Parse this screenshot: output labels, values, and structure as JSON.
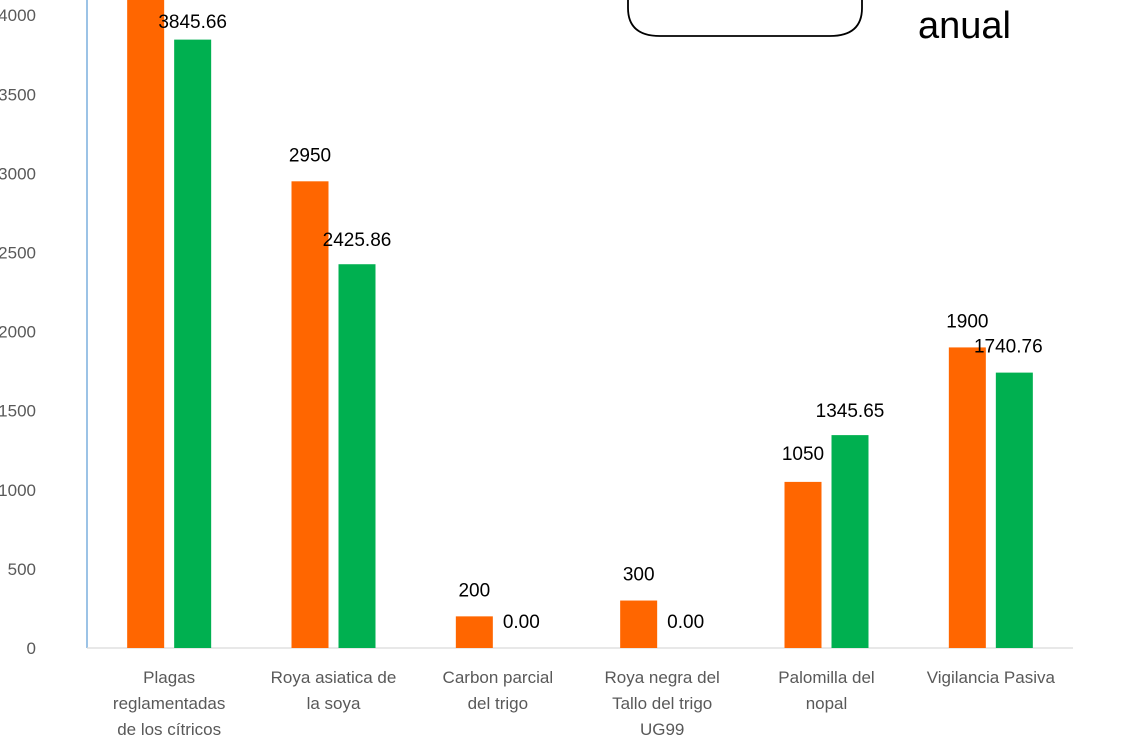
{
  "chart_data": {
    "type": "bar",
    "categories": [
      [
        "Plagas",
        "reglamentadas",
        "de los cítricos"
      ],
      [
        "Roya asiatica de",
        "la soya"
      ],
      [
        "Carbon parcial",
        "del trigo"
      ],
      [
        "Roya negra del",
        "Tallo del trigo",
        "UG99"
      ],
      [
        "Palomilla del",
        "nopal"
      ],
      [
        "Vigilancia Pasiva"
      ]
    ],
    "series": [
      {
        "color": "#FF6600",
        "values": [
          4100,
          2950,
          200,
          300,
          1050,
          1900
        ],
        "labels": [
          "",
          "2950",
          "200",
          "300",
          "1050",
          "1900"
        ]
      },
      {
        "color": "#00B050",
        "values": [
          3845.66,
          2425.86,
          0,
          0,
          1345.65,
          1740.76
        ],
        "labels": [
          "3845.66",
          "2425.86",
          "0.00",
          "0.00",
          "1345.65",
          "1740.76"
        ]
      }
    ],
    "y_ticks": [
      "0",
      "500",
      "1000",
      "1500",
      "2000",
      "2500",
      "3000",
      "3500",
      "4000"
    ],
    "ylim": [
      0,
      4000
    ],
    "grid": false,
    "corner_text": "anual"
  }
}
